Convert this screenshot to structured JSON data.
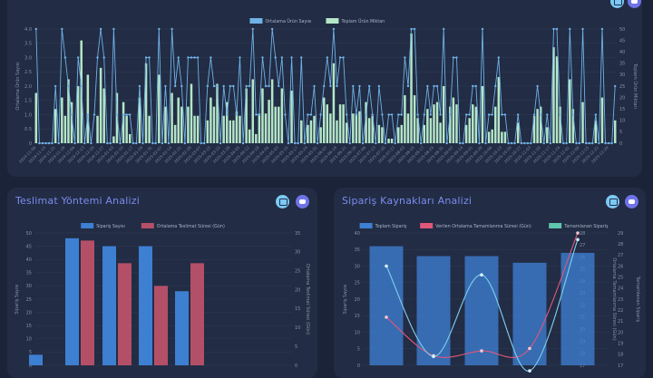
{
  "chart_data": [
    {
      "type": "bar",
      "title": "",
      "series": [
        {
          "name": "Ortalama Ürün Sayısı",
          "kind": "line",
          "axis": "left",
          "color": "#6fb2e6",
          "values": [
            4,
            0,
            0,
            0,
            0,
            0,
            2,
            0,
            4,
            3,
            2,
            1,
            0,
            3,
            2,
            0,
            1,
            0,
            1,
            3,
            4,
            3,
            0,
            0,
            4,
            1,
            0,
            1,
            1,
            1,
            0,
            0,
            2,
            0,
            3,
            3,
            0,
            0,
            4,
            0,
            2,
            0,
            4,
            2,
            3,
            2,
            0,
            3,
            3,
            3,
            3,
            0,
            0,
            2,
            3,
            2,
            2,
            0,
            2,
            1,
            2,
            2,
            1,
            3,
            0,
            2,
            2,
            4,
            1,
            1,
            3,
            2,
            2,
            4,
            3,
            2,
            3,
            1,
            0,
            3,
            0,
            0,
            3,
            0,
            1,
            1,
            2,
            0,
            1,
            2,
            3,
            2,
            4,
            2,
            3,
            3,
            1,
            0,
            2,
            1,
            2,
            0,
            1,
            2,
            1,
            0,
            2,
            1,
            0,
            1,
            1,
            0,
            1,
            1,
            3,
            2,
            4,
            4,
            1,
            0,
            1,
            2,
            1,
            2,
            2,
            1,
            4,
            0,
            1,
            3,
            3,
            0,
            0,
            1,
            1,
            2,
            2,
            0,
            4,
            0,
            1,
            1,
            2,
            3,
            1,
            1,
            0,
            0,
            0,
            1,
            0,
            0,
            0,
            0,
            1,
            2,
            1,
            0,
            1,
            0,
            4,
            4,
            1,
            0,
            0,
            4,
            1,
            0,
            0,
            4,
            0,
            0,
            0,
            1,
            0,
            4,
            0,
            0,
            0,
            2
          ]
        },
        {
          "name": "Toplam Ürün Miktarı",
          "kind": "bar",
          "axis": "right",
          "color": "#b4e6c8",
          "values": [
            22,
            0,
            0,
            0,
            0,
            0,
            15,
            0,
            20,
            12,
            28,
            18,
            0,
            25,
            45,
            0,
            30,
            0,
            0,
            12,
            33,
            24,
            0,
            0,
            3,
            22,
            0,
            18,
            12,
            4,
            0,
            0,
            20,
            0,
            35,
            12,
            0,
            0,
            30,
            0,
            16,
            0,
            22,
            8,
            20,
            16,
            0,
            16,
            26,
            12,
            12,
            0,
            0,
            10,
            20,
            16,
            26,
            0,
            12,
            18,
            10,
            10,
            14,
            12,
            0,
            24,
            6,
            28,
            4,
            13,
            24,
            13,
            19,
            28,
            16,
            16,
            24,
            0,
            0,
            23,
            0,
            0,
            10,
            0,
            8,
            10,
            12,
            0,
            7,
            20,
            17,
            13,
            35,
            10,
            17,
            17,
            9,
            0,
            13,
            13,
            14,
            0,
            18,
            11,
            12,
            0,
            8,
            7,
            0,
            2,
            2,
            0,
            7,
            8,
            21,
            13,
            48,
            21,
            11,
            0,
            8,
            15,
            11,
            17,
            18,
            9,
            25,
            0,
            16,
            20,
            17,
            0,
            0,
            8,
            11,
            17,
            16,
            0,
            25,
            0,
            5,
            6,
            16,
            29,
            5,
            5,
            0,
            0,
            0,
            9,
            0,
            0,
            0,
            0,
            12,
            15,
            16,
            0,
            7,
            0,
            42,
            38,
            16,
            0,
            0,
            28,
            15,
            0,
            0,
            18,
            0,
            0,
            0,
            10,
            0,
            20,
            0,
            0,
            0,
            10
          ]
        }
      ],
      "x_tick_labels": [
        "2024-11-06",
        "2024-11-09",
        "2024-11-12",
        "2024-11-14",
        "2024-11-17",
        "2024-11-19",
        "2024-11-21",
        "2024-11-24",
        "2024-11-26",
        "2024-11-29",
        "2024-12-01",
        "2024-12-03",
        "2024-12-06",
        "2024-12-08",
        "2024-12-10",
        "2024-12-13",
        "2024-12-15",
        "2024-12-17",
        "2024-12-20",
        "2024-12-22",
        "2024-12-25",
        "2024-12-27",
        "2024-12-29",
        "2025-01-01",
        "2025-01-03",
        "2025-01-05",
        "2025-01-08",
        "2025-01-10",
        "2025-01-12",
        "2025-01-15",
        "2025-01-17",
        "2025-01-19",
        "2025-01-22",
        "2025-01-24",
        "2025-01-27",
        "2025-01-29",
        "2025-01-31",
        "2025-02-03",
        "2025-02-05",
        "2025-02-07",
        "2025-02-10",
        "2025-02-12",
        "2025-02-14",
        "2025-02-17",
        "2025-02-19",
        "2025-02-21",
        "2025-02-24",
        "2025-02-26",
        "2025-02-28",
        "2025-03-03",
        "2025-03-05",
        "2025-03-07",
        "2025-03-10",
        "2025-03-12",
        "2025-03-15",
        "2025-03-17",
        "2025-03-19",
        "2025-03-22",
        "2025-03-24",
        "2025-03-26",
        "2025-03-29",
        "2025-03-31",
        "2025-04-02",
        "2025-04-05",
        "2025-04-07",
        "2025-04-09",
        "2025-04-12",
        "2025-04-14",
        "2025-04-17",
        "2025-04-19",
        "2025-04-21",
        "2025-04-24",
        "2025-04-26",
        "2025-04-28",
        "2025-05-01",
        "2025-05-03",
        "2025-05-05",
        "2025-05-08",
        "2025-05-10",
        "2025-05-12",
        "2025-05-15",
        "2025-05-17",
        "2025-05-19",
        "2025-05-22",
        "2025-05-24",
        "2025-05-27",
        "2025-05-29",
        "2025-05-31",
        "2025-06-03",
        "2025-06-05",
        "2025-06-07",
        "2025-06-10",
        "2025-06-12",
        "2025-06-14",
        "2025-06-17",
        "2025-06-19",
        "2025-06-21",
        "2025-06-24",
        "2025-06-26",
        "2025-06-29",
        "2025-07-01",
        "2025-07-03",
        "2025-07-06",
        "2025-07-08",
        "2025-07-10",
        "2025-07-13",
        "2025-07-15",
        "2025-07-17",
        "2025-07-20",
        "2025-07-22",
        "2025-07-25",
        "2025-07-27",
        "2025-07-29",
        "2025-08-01",
        "2025-08-03",
        "2025-08-05",
        "2025-08-08",
        "2025-08-10",
        "2025-08-12",
        "2025-08-15",
        "2025-08-17",
        "2025-08-19",
        "2025-08-22",
        "2025-08-24",
        "2025-08-27",
        "2025-08-29",
        "2025-08-31",
        "2025-09-03",
        "2025-09-05",
        "2025-09-07",
        "2025-09-10",
        "2025-09-12",
        "2025-09-14",
        "2025-09-17",
        "2025-09-19",
        "2025-09-21",
        "2025-09-24",
        "2025-09-26",
        "2025-09-29",
        "2025-10-01",
        "2025-10-03",
        "2025-10-06",
        "2025-10-08",
        "2025-10-10",
        "2025-10-13",
        "2025-10-15",
        "2025-10-17",
        "2025-10-20",
        "2025-10-22",
        "2025-10-24",
        "2025-10-27",
        "2025-10-29",
        "2025-10-31",
        "2025-11-03",
        "2025-11-05",
        "2025-11-07",
        "2025-11-10",
        "2025-11-12",
        "2025-11-14",
        "2025-11-17",
        "2025-11-19",
        "2025-11-21",
        "2025-11-24",
        "2025-11-26",
        "2025-11-28",
        "2025-12-01",
        "2025-12-03",
        "2025-12-05",
        "2025-12-08",
        "2025-12-10",
        "2025-12-12",
        "2025-12-15",
        "2025-12-17",
        "2025-12-19",
        "2025-12-22",
        "2025-12-24",
        "2025-12-26",
        "2025-12-29",
        "2025-12-31",
        "2026-01-02"
      ],
      "ylabel_left": "Ortalama Ürün Sayısı",
      "ylabel_right": "Toplam Ürün Miktarı",
      "ylim_left": [
        0,
        4
      ],
      "yticks_left": [
        "0",
        "0.5",
        "1.0",
        "1.5",
        "2.0",
        "2.5",
        "3.0",
        "3.5",
        "4.0"
      ],
      "ylim_right": [
        0,
        50
      ],
      "yticks_right": [
        "0",
        "5",
        "10",
        "15",
        "20",
        "25",
        "30",
        "35",
        "40",
        "45",
        "50"
      ],
      "legend": "top-center",
      "grid": true
    },
    {
      "type": "bar",
      "title": "Teslimat Yöntemi Analizi",
      "categories": [
        "",
        "",
        "",
        "",
        ""
      ],
      "series": [
        {
          "name": "Sipariş Sayısı",
          "axis": "left",
          "color": "#3d7fd1",
          "values": [
            4,
            48,
            45,
            45,
            28
          ]
        },
        {
          "name": "Ortalama Teslimat Süresi (Gün)",
          "axis": "right",
          "color": "#b44f68",
          "values": [
            0,
            33,
            27,
            21,
            27
          ]
        }
      ],
      "ylabel_left": "Sipariş Sayısı",
      "ylabel_right": "Ortalama Teslimat Süresi (Gün)",
      "ylim_left": [
        0,
        50
      ],
      "yticks_left": [
        "0",
        "5",
        "10",
        "15",
        "20",
        "25",
        "30",
        "35",
        "40",
        "45",
        "50"
      ],
      "ylim_right": [
        0,
        35
      ],
      "yticks_right": [
        "0",
        "5",
        "10",
        "15",
        "20",
        "25",
        "30",
        "35"
      ],
      "legend": "top-center",
      "grid": true
    },
    {
      "type": "bar",
      "title": "Sipariş Kaynakları Analizi",
      "categories": [
        "",
        "",
        "",
        "",
        ""
      ],
      "series": [
        {
          "name": "Toplam Sipariş",
          "kind": "bar",
          "axis": "left",
          "color": "#3d7fd1",
          "values": [
            36,
            33,
            33,
            31,
            34
          ]
        },
        {
          "name": "Verilen Ortalama Tamamlanma Süresi (Gün)",
          "kind": "line",
          "axis": "right1",
          "color": "#e0577a",
          "values": [
            21,
            17.8,
            18.2,
            18.4,
            28
          ]
        },
        {
          "name": "Tamamlanan Sipariş",
          "kind": "line",
          "axis": "right2",
          "color": "#5fc6ad",
          "values": [
            0,
            0,
            0,
            0,
            0
          ]
        },
        {
          "name": "",
          "kind": "line",
          "axis": "right3",
          "color": "#7fd0ec",
          "values": [
            26,
            17.8,
            25.2,
            16.5,
            28.4
          ]
        }
      ],
      "ylabel_left": "Sipariş Sayısı",
      "ylabel_right1": "Ortalama Tamamlanma Süresi (Gün)",
      "ylabel_right2": "Tamamlanan Sipariş",
      "ylim_left": [
        0,
        40
      ],
      "yticks_left": [
        "0",
        "5",
        "10",
        "15",
        "20",
        "25",
        "30",
        "35",
        "40"
      ],
      "ylim_right1": [
        17,
        28
      ],
      "yticks_right1": [
        "17",
        "18",
        "19",
        "20",
        "21",
        "22",
        "23",
        "24",
        "25",
        "26",
        "27",
        "28"
      ],
      "ylim_right2": [
        17,
        29
      ],
      "yticks_right2": [
        "17",
        "18",
        "19",
        "20",
        "21",
        "22",
        "23",
        "24",
        "25",
        "26",
        "27",
        "28",
        "29"
      ],
      "legend": "top-center",
      "grid": true
    }
  ]
}
